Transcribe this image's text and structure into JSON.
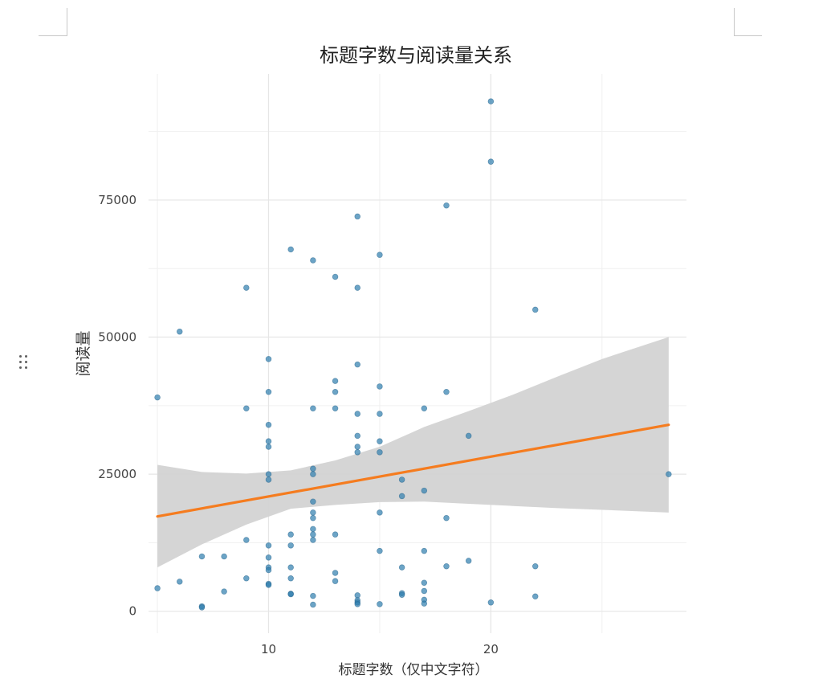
{
  "chart_data": {
    "type": "scatter",
    "title": "标题字数与阅读量关系",
    "xlabel": "标题字数（仅中文字符）",
    "ylabel": "阅读量",
    "xlim": [
      4.6,
      28.8
    ],
    "ylim": [
      -4000,
      98000
    ],
    "x_ticks": [
      10,
      20
    ],
    "x_tick_labels": [
      "10",
      "20"
    ],
    "x_minor_ticks": [
      5,
      15,
      25
    ],
    "y_ticks": [
      0,
      25000,
      50000,
      75000
    ],
    "y_tick_labels": [
      "0",
      "25000",
      "50000",
      "75000"
    ],
    "y_minor_ticks": [
      12500,
      37500,
      62500,
      87500
    ],
    "grid": true,
    "legend": "none",
    "colors": {
      "points": "#2e7dae",
      "line": "#f57c1f",
      "band": "#d3d3d3",
      "grid": "#e6e6e6"
    },
    "points": [
      [
        5,
        39000
      ],
      [
        5,
        4200
      ],
      [
        6,
        51000
      ],
      [
        6,
        5400
      ],
      [
        7,
        10000
      ],
      [
        7,
        900
      ],
      [
        7,
        700
      ],
      [
        8,
        10000
      ],
      [
        8,
        3600
      ],
      [
        9,
        59000
      ],
      [
        9,
        37000
      ],
      [
        9,
        13000
      ],
      [
        9,
        6000
      ],
      [
        10,
        46000
      ],
      [
        10,
        40000
      ],
      [
        10,
        34000
      ],
      [
        10,
        31000
      ],
      [
        10,
        30000
      ],
      [
        10,
        25000
      ],
      [
        10,
        24000
      ],
      [
        10,
        12000
      ],
      [
        10,
        9800
      ],
      [
        10,
        8000
      ],
      [
        10,
        7500
      ],
      [
        10,
        5000
      ],
      [
        10,
        4800
      ],
      [
        11,
        66000
      ],
      [
        11,
        14000
      ],
      [
        11,
        12000
      ],
      [
        11,
        8000
      ],
      [
        11,
        6000
      ],
      [
        11,
        3200
      ],
      [
        11,
        3100
      ],
      [
        12,
        64000
      ],
      [
        12,
        37000
      ],
      [
        12,
        26000
      ],
      [
        12,
        25000
      ],
      [
        12,
        20000
      ],
      [
        12,
        18000
      ],
      [
        12,
        17000
      ],
      [
        12,
        15000
      ],
      [
        12,
        14000
      ],
      [
        12,
        13000
      ],
      [
        12,
        2800
      ],
      [
        12,
        1200
      ],
      [
        13,
        61000
      ],
      [
        13,
        42000
      ],
      [
        13,
        40000
      ],
      [
        13,
        37000
      ],
      [
        13,
        14000
      ],
      [
        13,
        7000
      ],
      [
        13,
        5500
      ],
      [
        14,
        72000
      ],
      [
        14,
        59000
      ],
      [
        14,
        45000
      ],
      [
        14,
        36000
      ],
      [
        14,
        32000
      ],
      [
        14,
        30000
      ],
      [
        14,
        29000
      ],
      [
        14,
        2900
      ],
      [
        14,
        2000
      ],
      [
        14,
        1600
      ],
      [
        14,
        1300
      ],
      [
        15,
        65000
      ],
      [
        15,
        41000
      ],
      [
        15,
        36000
      ],
      [
        15,
        31000
      ],
      [
        15,
        29000
      ],
      [
        15,
        18000
      ],
      [
        15,
        11000
      ],
      [
        15,
        1300
      ],
      [
        16,
        24000
      ],
      [
        16,
        21000
      ],
      [
        16,
        8000
      ],
      [
        16,
        3300
      ],
      [
        16,
        3000
      ],
      [
        17,
        37000
      ],
      [
        17,
        22000
      ],
      [
        17,
        11000
      ],
      [
        17,
        5200
      ],
      [
        17,
        3700
      ],
      [
        17,
        2100
      ],
      [
        17,
        1400
      ],
      [
        18,
        74000
      ],
      [
        18,
        40000
      ],
      [
        18,
        17000
      ],
      [
        18,
        8200
      ],
      [
        19,
        32000
      ],
      [
        19,
        9200
      ],
      [
        20,
        93000
      ],
      [
        20,
        82000
      ],
      [
        20,
        1600
      ],
      [
        22,
        55000
      ],
      [
        22,
        8200
      ],
      [
        22,
        2700
      ],
      [
        28,
        25000
      ]
    ],
    "trend": {
      "x_start": 5,
      "y_start": 17300,
      "x_end": 28,
      "y_end": 34000
    },
    "confidence_band": [
      [
        5,
        8000,
        26700
      ],
      [
        7,
        12200,
        25400
      ],
      [
        9,
        15800,
        25100
      ],
      [
        11,
        18700,
        25700
      ],
      [
        13,
        19400,
        27500
      ],
      [
        15,
        19900,
        30000
      ],
      [
        17,
        20000,
        33600
      ],
      [
        19,
        19600,
        36500
      ],
      [
        21,
        19200,
        39500
      ],
      [
        23,
        18800,
        42800
      ],
      [
        25,
        18500,
        46000
      ],
      [
        28,
        18000,
        50000
      ]
    ]
  }
}
